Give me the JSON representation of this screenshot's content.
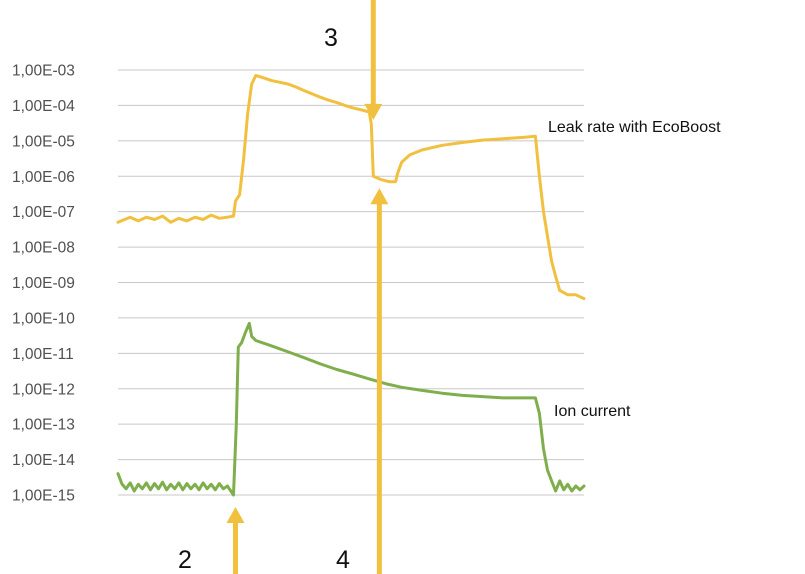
{
  "chart_data": {
    "type": "line",
    "yscale": "log",
    "ylim": [
      1e-15,
      0.001
    ],
    "ytick_labels": [
      "1,00E-03",
      "1,00E-04",
      "1,00E-05",
      "1,00E-06",
      "1,00E-07",
      "1,00E-08",
      "1,00E-09",
      "1,00E-10",
      "1,00E-11",
      "1,00E-12",
      "1,00E-13",
      "1,00E-14",
      "1,00E-15"
    ],
    "grid": true,
    "x_ticks_labels": false,
    "series": [
      {
        "name": "Leak rate with EcoBoost",
        "color": "#f2c03f",
        "points": [
          [
            0,
            5e-08
          ],
          [
            3,
            7e-08
          ],
          [
            5,
            5.5e-08
          ],
          [
            7,
            7e-08
          ],
          [
            9,
            6e-08
          ],
          [
            11,
            7.5e-08
          ],
          [
            13,
            5e-08
          ],
          [
            15,
            6.5e-08
          ],
          [
            17,
            5.5e-08
          ],
          [
            19,
            7e-08
          ],
          [
            21,
            6e-08
          ],
          [
            23,
            8e-08
          ],
          [
            25,
            6.5e-08
          ],
          [
            27,
            7e-08
          ],
          [
            28.5,
            7.5e-08
          ],
          [
            29,
            2e-07
          ],
          [
            30,
            3e-07
          ],
          [
            31,
            3e-06
          ],
          [
            32,
            6e-05
          ],
          [
            33,
            0.0004
          ],
          [
            34,
            0.0007
          ],
          [
            36,
            0.0006
          ],
          [
            38,
            0.0005
          ],
          [
            40,
            0.00045
          ],
          [
            42,
            0.0004
          ],
          [
            44,
            0.00033
          ],
          [
            46,
            0.00026
          ],
          [
            48,
            0.00021
          ],
          [
            50,
            0.00017
          ],
          [
            52,
            0.00014
          ],
          [
            54,
            0.00012
          ],
          [
            56,
            0.0001
          ],
          [
            58,
            8.5e-05
          ],
          [
            60,
            7.5e-05
          ],
          [
            62,
            6.5e-05
          ],
          [
            62.5,
            3e-05
          ],
          [
            63,
            1e-06
          ],
          [
            65,
            8e-07
          ],
          [
            67,
            7e-07
          ],
          [
            68.5,
            7e-07
          ],
          [
            69,
            1.2e-06
          ],
          [
            70,
            2.5e-06
          ],
          [
            72,
            4e-06
          ],
          [
            75,
            5.5e-06
          ],
          [
            80,
            7.5e-06
          ],
          [
            85,
            9e-06
          ],
          [
            90,
            1.05e-05
          ],
          [
            95,
            1.15e-05
          ],
          [
            100,
            1.25e-05
          ],
          [
            103,
            1.35e-05
          ],
          [
            104,
            1e-06
          ],
          [
            105,
            1e-07
          ],
          [
            106,
            2e-08
          ],
          [
            107,
            4e-09
          ],
          [
            108,
            1.5e-09
          ],
          [
            109,
            6e-10
          ],
          [
            111,
            4.5e-10
          ],
          [
            113,
            4.5e-10
          ],
          [
            115,
            3.5e-10
          ]
        ]
      },
      {
        "name": "Ion current",
        "color": "#7fae4c",
        "points": [
          [
            0,
            4e-15
          ],
          [
            1,
            2e-15
          ],
          [
            2,
            1.5e-15
          ],
          [
            3,
            2.2e-15
          ],
          [
            4,
            1.3e-15
          ],
          [
            5,
            2e-15
          ],
          [
            6,
            1.5e-15
          ],
          [
            7,
            2.2e-15
          ],
          [
            8,
            1.4e-15
          ],
          [
            9,
            2.1e-15
          ],
          [
            10,
            1.5e-15
          ],
          [
            11,
            2.3e-15
          ],
          [
            12,
            1.4e-15
          ],
          [
            13,
            2e-15
          ],
          [
            14,
            1.5e-15
          ],
          [
            15,
            2.2e-15
          ],
          [
            16,
            1.4e-15
          ],
          [
            17,
            2.1e-15
          ],
          [
            18,
            1.5e-15
          ],
          [
            19,
            2e-15
          ],
          [
            20,
            1.4e-15
          ],
          [
            21,
            2.2e-15
          ],
          [
            22,
            1.5e-15
          ],
          [
            23,
            2e-15
          ],
          [
            24,
            1.4e-15
          ],
          [
            25,
            2.1e-15
          ],
          [
            26,
            1.5e-15
          ],
          [
            27,
            1.8e-15
          ],
          [
            28.5,
            1e-15
          ],
          [
            29.2,
            1e-13
          ],
          [
            29.7,
            1.5e-11
          ],
          [
            30.5,
            2e-11
          ],
          [
            31.5,
            4e-11
          ],
          [
            32.4,
            7e-11
          ],
          [
            33,
            3e-11
          ],
          [
            34,
            2.3e-11
          ],
          [
            38,
            1.6e-11
          ],
          [
            42,
            1.1e-11
          ],
          [
            46,
            7.5e-12
          ],
          [
            50,
            5e-12
          ],
          [
            54,
            3.5e-12
          ],
          [
            58,
            2.6e-12
          ],
          [
            62,
            1.9e-12
          ],
          [
            66,
            1.4e-12
          ],
          [
            70,
            1.1e-12
          ],
          [
            75,
            9e-13
          ],
          [
            80,
            7.5e-13
          ],
          [
            85,
            6.5e-13
          ],
          [
            90,
            6e-13
          ],
          [
            95,
            5.5e-13
          ],
          [
            100,
            5.5e-13
          ],
          [
            103,
            5.5e-13
          ],
          [
            104,
            2e-13
          ],
          [
            105,
            2e-14
          ],
          [
            106,
            5e-15
          ],
          [
            107,
            2.5e-15
          ],
          [
            108,
            1.3e-15
          ],
          [
            109,
            2.5e-15
          ],
          [
            110,
            1.4e-15
          ],
          [
            111,
            2e-15
          ],
          [
            112,
            1.3e-15
          ],
          [
            113,
            1.8e-15
          ],
          [
            114,
            1.4e-15
          ],
          [
            115,
            1.8e-15
          ]
        ]
      }
    ],
    "annotations": [
      {
        "label": "2",
        "direction": "up",
        "x": 29,
        "y_tip": 1e-15
      },
      {
        "label": "3",
        "direction": "down",
        "x": 63,
        "y_tip": 3e-05
      },
      {
        "label": "4",
        "direction": "up",
        "x": 64.5,
        "y_tip": 1e-06
      }
    ]
  },
  "series_labels": [
    "Leak rate with EcoBoost",
    "Ion current"
  ],
  "marker_labels": [
    "2",
    "3",
    "4"
  ],
  "colors": {
    "grid": "#c8c8c8",
    "arrow": "#f2c03f",
    "tick_text": "#505050"
  }
}
